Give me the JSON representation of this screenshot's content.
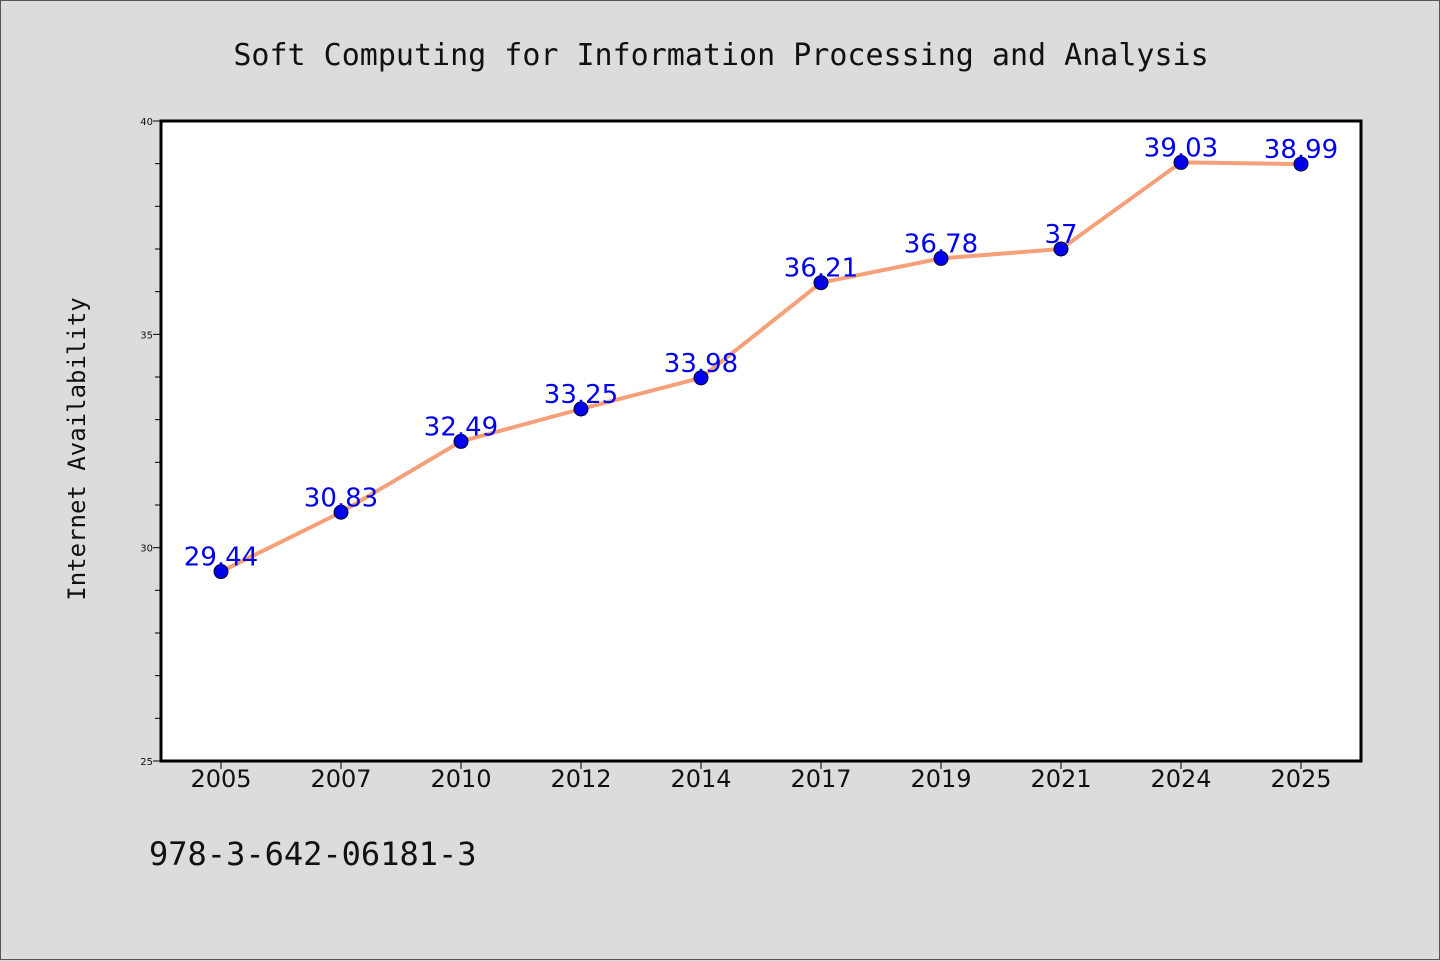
{
  "chart_data": {
    "type": "line",
    "title": "Soft Computing for Information Processing and Analysis",
    "xlabel": "",
    "ylabel": "Internet Availability",
    "categories": [
      "2005",
      "2007",
      "2010",
      "2012",
      "2014",
      "2017",
      "2019",
      "2021",
      "2024",
      "2025"
    ],
    "series": [
      {
        "values": [
          29.44,
          30.83,
          32.49,
          33.25,
          33.98,
          36.21,
          36.78,
          37,
          39.03,
          38.99
        ],
        "line_color": "#f4a07a",
        "marker_color": "#0000ee"
      }
    ],
    "data_labels": [
      "29.44",
      "30.83",
      "32.49",
      "33.25",
      "33.98",
      "36.21",
      "36.78",
      "37",
      "39.03",
      "38.99"
    ],
    "data_label_color": "#0000ee",
    "ylim": [
      25,
      40
    ],
    "yticks": [
      "25",
      "30",
      "35",
      "40"
    ],
    "grid": false,
    "legend": "none"
  },
  "footer": {
    "isbn": "978-3-642-06181-3"
  }
}
